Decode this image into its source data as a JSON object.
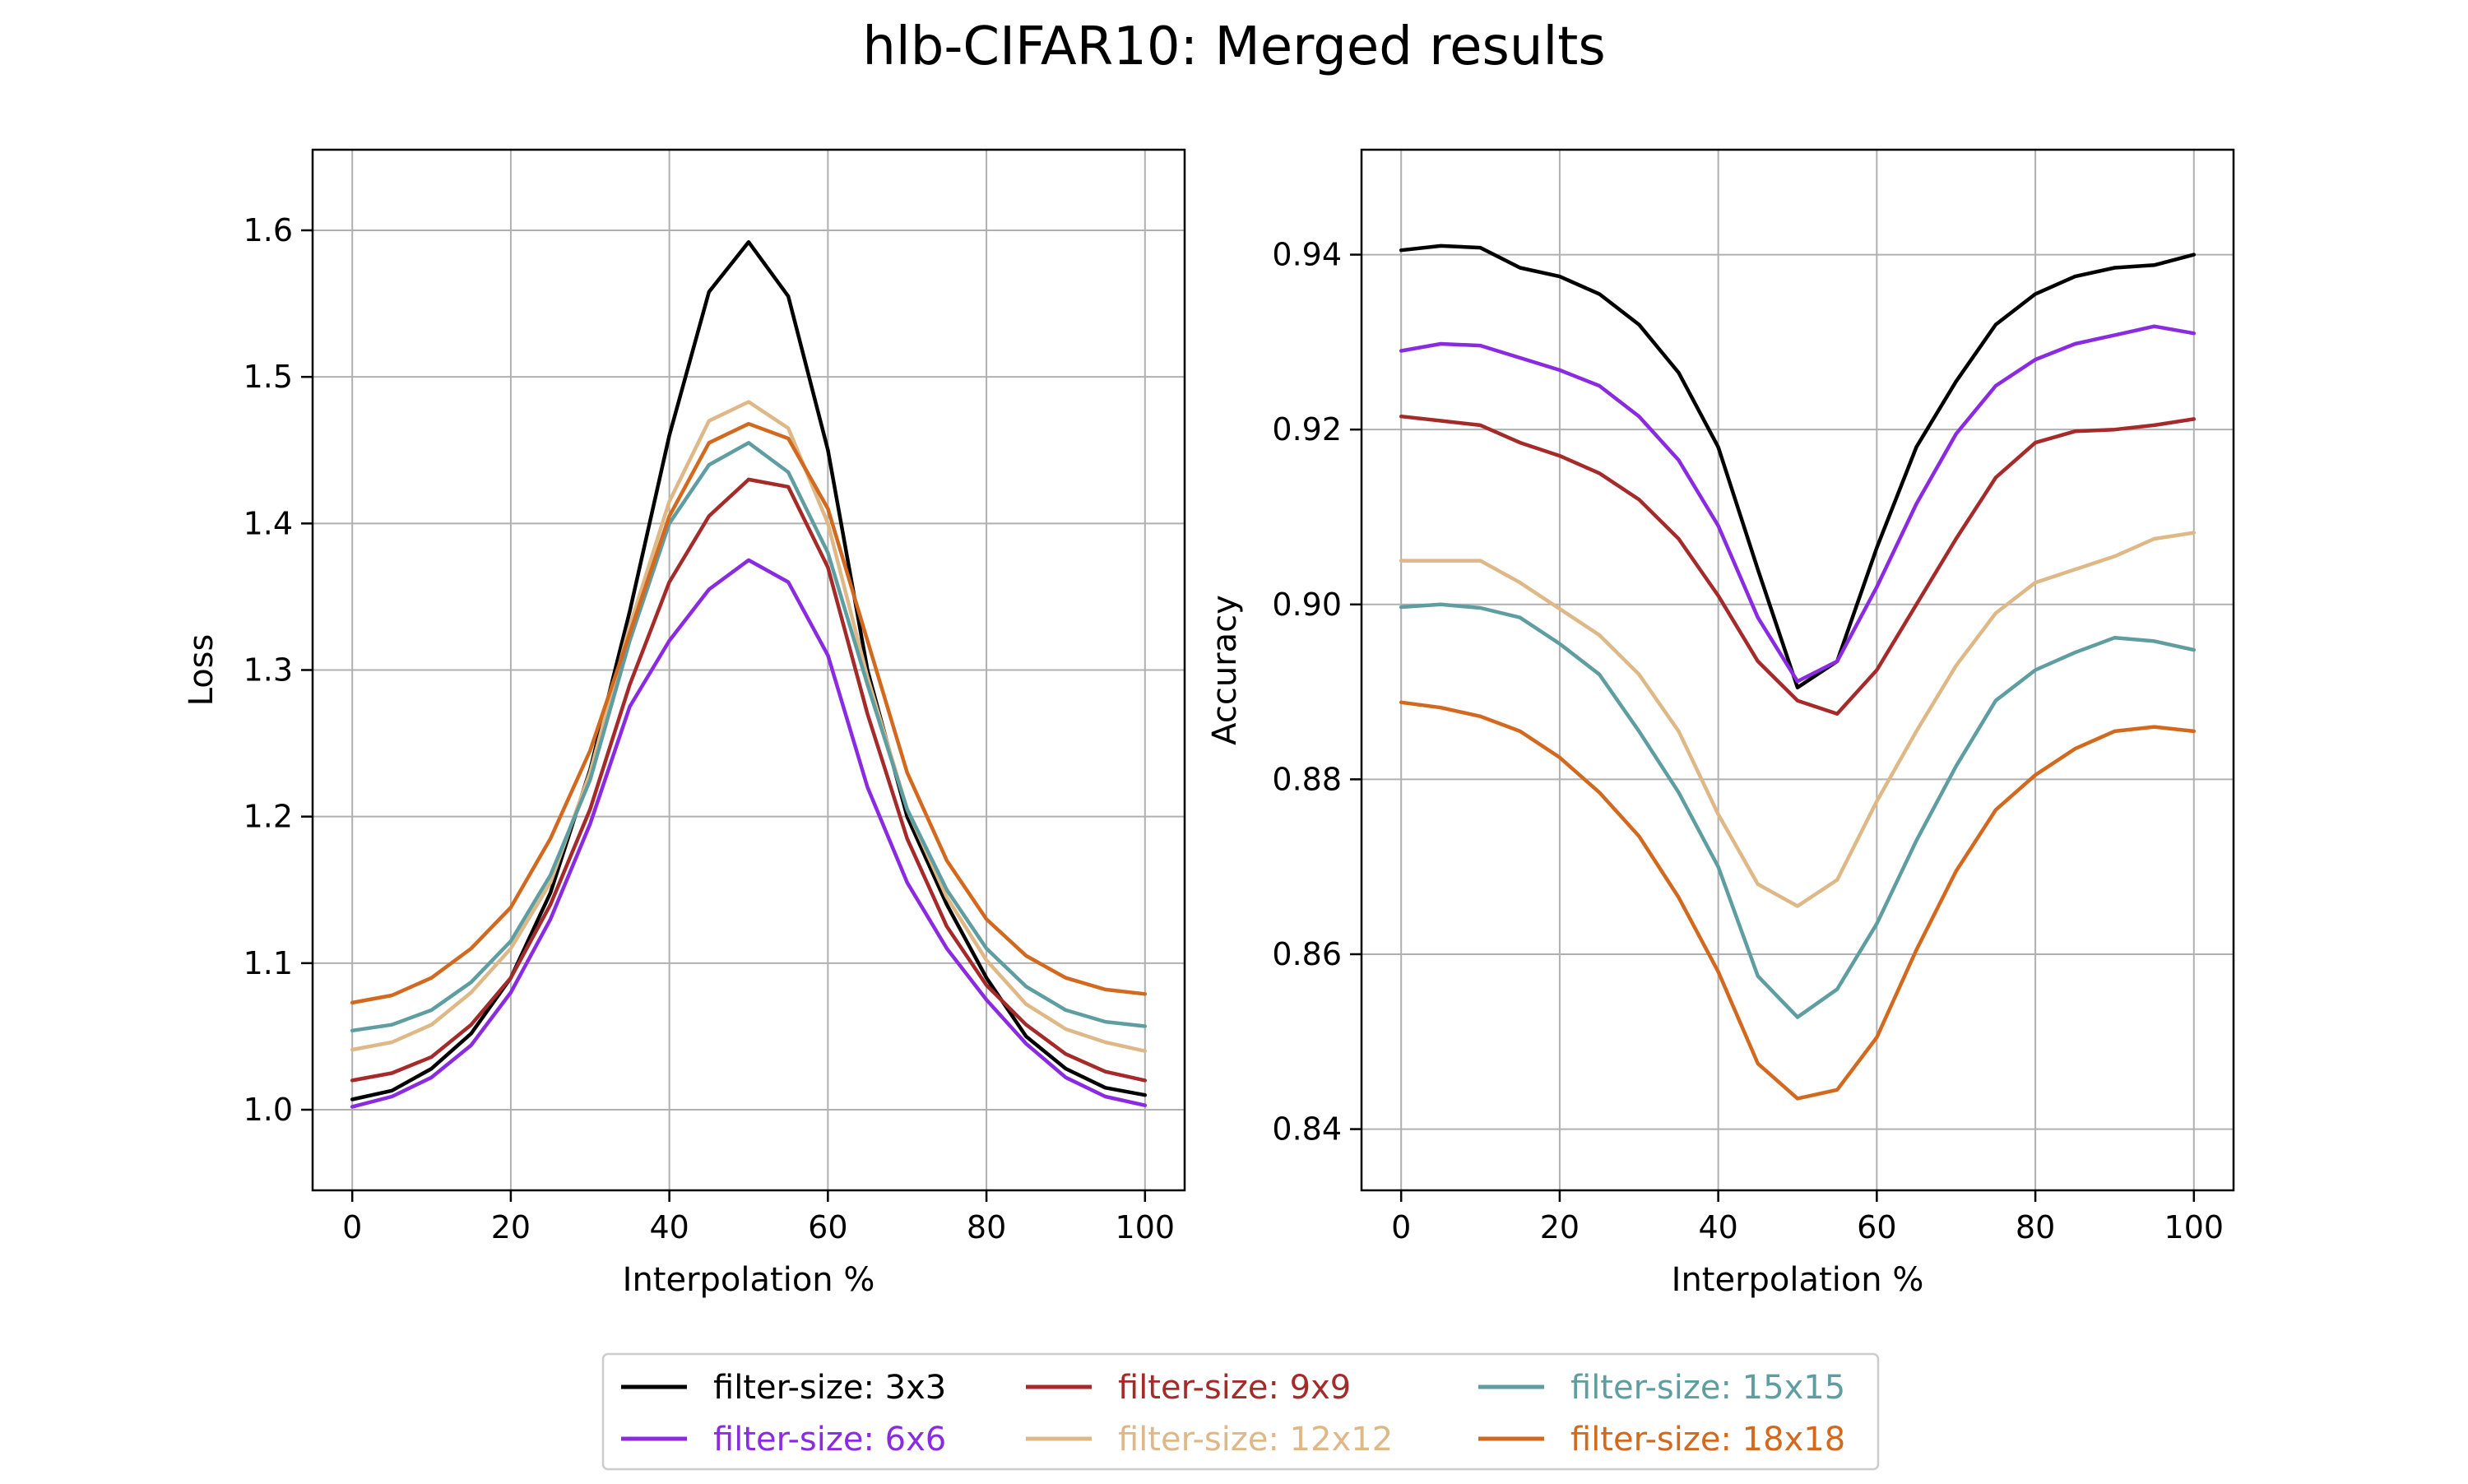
{
  "title": "hlb-CIFAR10: Merged results",
  "legend": {
    "placement": "lower-center",
    "entries": [
      {
        "label": "filter-size: 3x3",
        "color": "#000000",
        "text_color": "#000000"
      },
      {
        "label": "filter-size: 6x6",
        "color": "#8a2be2",
        "text_color": "#8a2be2"
      },
      {
        "label": "filter-size: 9x9",
        "color": "#a52a2a",
        "text_color": "#a52a2a"
      },
      {
        "label": "filter-size: 12x12",
        "color": "#deb887",
        "text_color": "#deb887"
      },
      {
        "label": "filter-size: 15x15",
        "color": "#5f9ea0",
        "text_color": "#5f9ea0"
      },
      {
        "label": "filter-size: 18x18",
        "color": "#d2691e",
        "text_color": "#d2691e"
      }
    ]
  },
  "chart_data": [
    {
      "type": "line",
      "title": "",
      "xlabel": "Interpolation %",
      "ylabel": "Loss",
      "xlim": [
        -5,
        105
      ],
      "ylim": [
        0.945,
        1.655
      ],
      "xticks": [
        0,
        20,
        40,
        60,
        80,
        100
      ],
      "yticks": [
        1.0,
        1.1,
        1.2,
        1.3,
        1.4,
        1.5,
        1.6
      ],
      "ytick_labels": [
        "1.0",
        "1.1",
        "1.2",
        "1.3",
        "1.4",
        "1.5",
        "1.6"
      ],
      "grid": true,
      "x": [
        0,
        5,
        10,
        15,
        20,
        25,
        30,
        35,
        40,
        45,
        50,
        55,
        60,
        65,
        70,
        75,
        80,
        85,
        90,
        95,
        100
      ],
      "series": [
        {
          "name": "filter-size: 3x3",
          "color": "#000000",
          "values": [
            1.007,
            1.013,
            1.028,
            1.052,
            1.09,
            1.148,
            1.232,
            1.34,
            1.46,
            1.558,
            1.592,
            1.555,
            1.45,
            1.3,
            1.2,
            1.14,
            1.09,
            1.05,
            1.028,
            1.015,
            1.01
          ]
        },
        {
          "name": "filter-size: 6x6",
          "color": "#8a2be2",
          "values": [
            1.002,
            1.009,
            1.022,
            1.044,
            1.08,
            1.13,
            1.195,
            1.275,
            1.32,
            1.355,
            1.375,
            1.36,
            1.31,
            1.22,
            1.155,
            1.11,
            1.075,
            1.045,
            1.022,
            1.009,
            1.003
          ]
        },
        {
          "name": "filter-size: 9x9",
          "color": "#a52a2a",
          "values": [
            1.02,
            1.025,
            1.036,
            1.058,
            1.09,
            1.14,
            1.205,
            1.29,
            1.36,
            1.405,
            1.43,
            1.425,
            1.37,
            1.27,
            1.185,
            1.125,
            1.085,
            1.058,
            1.038,
            1.026,
            1.02
          ]
        },
        {
          "name": "filter-size: 12x12",
          "color": "#deb887",
          "values": [
            1.041,
            1.046,
            1.058,
            1.08,
            1.11,
            1.155,
            1.23,
            1.33,
            1.415,
            1.47,
            1.483,
            1.465,
            1.4,
            1.295,
            1.205,
            1.145,
            1.102,
            1.072,
            1.055,
            1.046,
            1.04
          ]
        },
        {
          "name": "filter-size: 15x15",
          "color": "#5f9ea0",
          "values": [
            1.054,
            1.058,
            1.068,
            1.087,
            1.115,
            1.16,
            1.225,
            1.32,
            1.4,
            1.44,
            1.455,
            1.435,
            1.38,
            1.29,
            1.205,
            1.15,
            1.11,
            1.084,
            1.068,
            1.06,
            1.057
          ]
        },
        {
          "name": "filter-size: 18x18",
          "color": "#d2691e",
          "values": [
            1.073,
            1.078,
            1.09,
            1.11,
            1.138,
            1.185,
            1.245,
            1.325,
            1.405,
            1.455,
            1.468,
            1.458,
            1.41,
            1.32,
            1.23,
            1.17,
            1.13,
            1.105,
            1.09,
            1.082,
            1.079
          ]
        }
      ]
    },
    {
      "type": "line",
      "title": "",
      "xlabel": "Interpolation %",
      "ylabel": "Accuracy",
      "xlim": [
        -5,
        105
      ],
      "ylim": [
        0.833,
        0.952
      ],
      "xticks": [
        0,
        20,
        40,
        60,
        80,
        100
      ],
      "yticks": [
        0.84,
        0.86,
        0.88,
        0.9,
        0.92,
        0.94
      ],
      "ytick_labels": [
        "0.84",
        "0.86",
        "0.88",
        "0.90",
        "0.92",
        "0.94"
      ],
      "grid": true,
      "x": [
        0,
        5,
        10,
        15,
        20,
        25,
        30,
        35,
        40,
        45,
        50,
        55,
        60,
        65,
        70,
        75,
        80,
        85,
        90,
        95,
        100
      ],
      "series": [
        {
          "name": "filter-size: 3x3",
          "color": "#000000",
          "values": [
            0.9405,
            0.941,
            0.9408,
            0.9385,
            0.9375,
            0.9355,
            0.932,
            0.9265,
            0.918,
            0.904,
            0.8905,
            0.8935,
            0.9065,
            0.918,
            0.9255,
            0.932,
            0.9355,
            0.9375,
            0.9385,
            0.9388,
            0.94
          ]
        },
        {
          "name": "filter-size: 6x6",
          "color": "#8a2be2",
          "values": [
            0.929,
            0.9298,
            0.9296,
            0.9282,
            0.9268,
            0.925,
            0.9215,
            0.9165,
            0.909,
            0.8985,
            0.8912,
            0.8935,
            0.902,
            0.9115,
            0.9195,
            0.925,
            0.928,
            0.9298,
            0.9308,
            0.9318,
            0.931
          ]
        },
        {
          "name": "filter-size: 9x9",
          "color": "#a52a2a",
          "values": [
            0.9215,
            0.921,
            0.9205,
            0.9185,
            0.917,
            0.915,
            0.912,
            0.9075,
            0.901,
            0.8935,
            0.889,
            0.8875,
            0.8925,
            0.9,
            0.9075,
            0.9145,
            0.9185,
            0.9198,
            0.92,
            0.9205,
            0.9212
          ]
        },
        {
          "name": "filter-size: 12x12",
          "color": "#deb887",
          "values": [
            0.905,
            0.905,
            0.905,
            0.9025,
            0.8995,
            0.8965,
            0.892,
            0.8855,
            0.876,
            0.868,
            0.8655,
            0.8685,
            0.8775,
            0.8855,
            0.893,
            0.899,
            0.9025,
            0.904,
            0.9055,
            0.9075,
            0.9082
          ]
        },
        {
          "name": "filter-size: 15x15",
          "color": "#5f9ea0",
          "values": [
            0.8997,
            0.9,
            0.8996,
            0.8985,
            0.8955,
            0.892,
            0.8855,
            0.8785,
            0.87,
            0.8575,
            0.8528,
            0.856,
            0.8635,
            0.873,
            0.8815,
            0.889,
            0.8925,
            0.8945,
            0.8962,
            0.8958,
            0.8948
          ]
        },
        {
          "name": "filter-size: 18x18",
          "color": "#d2691e",
          "values": [
            0.8888,
            0.8882,
            0.8872,
            0.8855,
            0.8825,
            0.8785,
            0.8735,
            0.8665,
            0.858,
            0.8475,
            0.8435,
            0.8445,
            0.8505,
            0.8605,
            0.8695,
            0.8765,
            0.8805,
            0.8835,
            0.8855,
            0.886,
            0.8855
          ]
        }
      ]
    }
  ]
}
